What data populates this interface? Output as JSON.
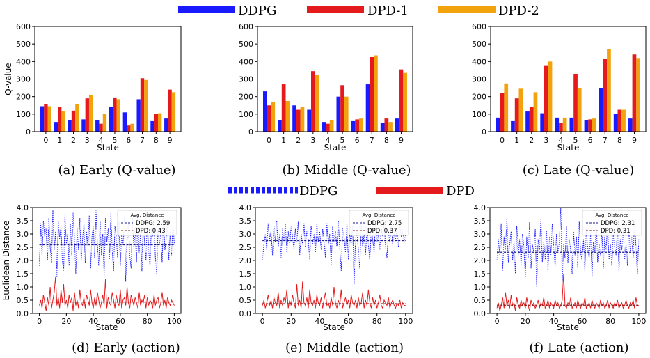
{
  "top_legend": [
    {
      "label": "DDPG",
      "color": "#1a1aff"
    },
    {
      "label": "DPD-1",
      "color": "#e41a1c"
    },
    {
      "label": "DPD-2",
      "color": "#f2a20d"
    }
  ],
  "mid_legend": [
    {
      "label": "DDPG",
      "color": "#1a1aff",
      "style": "dotted"
    },
    {
      "label": "DPD",
      "color": "#e41a1c",
      "style": "solid"
    }
  ],
  "captions": [
    "(a) Early (Q-value)",
    "(b) Middle (Q-value)",
    "(c) Late (Q-value)",
    "(d) Early (action)",
    "(e) Middle (action)",
    "(f) Late (action)"
  ],
  "inset_title": "Avg. Distance",
  "chart_data": [
    {
      "type": "bar",
      "xlabel": "State",
      "ylabel": "Q-value",
      "ylim": [
        0,
        600
      ],
      "yticks": [
        0,
        100,
        200,
        300,
        400,
        500,
        600
      ],
      "categories": [
        "0",
        "1",
        "2",
        "3",
        "4",
        "5",
        "6",
        "7",
        "8",
        "9"
      ],
      "series": [
        {
          "name": "DDPG",
          "values": [
            145,
            55,
            65,
            70,
            65,
            140,
            110,
            185,
            60,
            75
          ]
        },
        {
          "name": "DPD-1",
          "values": [
            155,
            140,
            120,
            190,
            45,
            195,
            35,
            305,
            100,
            240
          ]
        },
        {
          "name": "DPD-2",
          "values": [
            145,
            115,
            155,
            210,
            100,
            185,
            45,
            295,
            105,
            225
          ]
        }
      ]
    },
    {
      "type": "bar",
      "xlabel": "State",
      "ylabel": "",
      "ylim": [
        0,
        600
      ],
      "yticks": [
        0,
        100,
        200,
        300,
        400,
        500,
        600
      ],
      "categories": [
        "0",
        "1",
        "2",
        "3",
        "4",
        "5",
        "6",
        "7",
        "8",
        "9"
      ],
      "series": [
        {
          "name": "DDPG",
          "values": [
            230,
            65,
            150,
            125,
            55,
            200,
            60,
            270,
            50,
            75
          ]
        },
        {
          "name": "DPD-1",
          "values": [
            150,
            270,
            125,
            345,
            45,
            265,
            70,
            425,
            75,
            355
          ]
        },
        {
          "name": "DPD-2",
          "values": [
            170,
            175,
            140,
            325,
            65,
            200,
            75,
            435,
            55,
            335
          ]
        }
      ]
    },
    {
      "type": "bar",
      "xlabel": "State",
      "ylabel": "",
      "ylim": [
        0,
        600
      ],
      "yticks": [
        0,
        100,
        200,
        300,
        400,
        500,
        600
      ],
      "categories": [
        "0",
        "1",
        "2",
        "3",
        "4",
        "5",
        "6",
        "7",
        "8",
        "9"
      ],
      "series": [
        {
          "name": "DDPG",
          "values": [
            80,
            60,
            115,
            105,
            80,
            80,
            65,
            250,
            100,
            75
          ]
        },
        {
          "name": "DPD-1",
          "values": [
            220,
            190,
            140,
            375,
            50,
            330,
            70,
            415,
            125,
            440
          ]
        },
        {
          "name": "DPD-2",
          "values": [
            275,
            245,
            225,
            400,
            80,
            250,
            75,
            470,
            125,
            420
          ]
        }
      ]
    },
    {
      "type": "line",
      "xlabel": "State",
      "ylabel": "Euclidean Distance",
      "xlim": [
        0,
        100
      ],
      "xticks": [
        0,
        20,
        40,
        60,
        80,
        100
      ],
      "ylim": [
        0.0,
        4.0
      ],
      "yticks": [
        "0.0",
        "0.5",
        "1.0",
        "1.5",
        "2.0",
        "2.5",
        "3.0",
        "3.5",
        "4.0"
      ],
      "legend": {
        "title": "Avg. Distance",
        "entries": [
          "DDPG: 2.59",
          "DPD: 0.43"
        ]
      },
      "avg": [
        2.59,
        0.43
      ],
      "series": [
        {
          "name": "DDPG",
          "values": [
            1.8,
            3.4,
            2.2,
            3.5,
            2.9,
            3.2,
            2.0,
            3.6,
            2.5,
            1.9,
            3.9,
            2.4,
            3.1,
            1.4,
            3.5,
            2.8,
            3.3,
            2.0,
            1.6,
            3.7,
            2.6,
            3.0,
            1.8,
            3.4,
            2.2,
            3.8,
            2.9,
            1.5,
            3.2,
            2.4,
            3.6,
            2.0,
            2.8,
            3.4,
            1.9,
            3.1,
            2.5,
            3.7,
            1.7,
            2.9,
            3.3,
            2.1,
            3.9,
            2.6,
            1.8,
            3.5,
            2.2,
            3.0,
            1.4,
            3.6,
            2.7,
            3.2,
            2.0,
            3.8,
            2.4,
            1.6,
            3.3,
            2.9,
            2.1,
            3.5,
            1.8,
            3.0,
            2.6,
            3.7,
            1.2,
            2.8,
            3.4,
            2.2,
            1.7,
            3.6,
            2.5,
            3.1,
            1.9,
            3.8,
            2.3,
            3.0,
            1.6,
            3.4,
            2.7,
            2.0,
            3.5,
            2.4,
            1.8,
            3.2,
            2.9,
            3.6,
            2.1,
            1.5,
            3.3,
            2.6,
            3.0,
            1.9,
            3.7,
            2.4,
            2.8,
            3.4,
            2.0,
            3.1,
            2.2,
            3.5,
            2.6
          ]
        },
        {
          "name": "DPD",
          "values": [
            0.3,
            0.5,
            0.2,
            0.7,
            0.4,
            0.1,
            0.6,
            0.3,
            1.0,
            0.2,
            0.5,
            0.8,
            1.4,
            0.3,
            0.6,
            0.2,
            0.9,
            0.4,
            1.1,
            0.3,
            0.5,
            0.2,
            0.7,
            0.4,
            0.6,
            0.1,
            0.8,
            0.3,
            0.5,
            0.2,
            0.9,
            0.4,
            0.3,
            0.6,
            0.2,
            0.7,
            0.5,
            0.3,
            0.9,
            0.4,
            0.2,
            0.6,
            0.3,
            0.8,
            0.5,
            0.2,
            0.4,
            0.7,
            0.3,
            1.3,
            0.2,
            0.6,
            0.4,
            0.3,
            0.8,
            0.5,
            0.2,
            0.7,
            0.4,
            0.3,
            0.9,
            0.2,
            0.5,
            0.6,
            0.3,
            1.0,
            0.4,
            0.2,
            0.7,
            0.5,
            0.3,
            0.6,
            0.4,
            0.2,
            0.8,
            0.3,
            0.5,
            0.4,
            0.7,
            0.2,
            0.6,
            0.3,
            0.5,
            0.4,
            0.2,
            0.7,
            0.3,
            0.5,
            0.6,
            0.2,
            0.4,
            0.8,
            0.3,
            0.5,
            0.2,
            0.6,
            0.4,
            0.3,
            0.5,
            0.4,
            0.3
          ]
        }
      ]
    },
    {
      "type": "line",
      "xlabel": "State",
      "ylabel": "",
      "xlim": [
        0,
        100
      ],
      "xticks": [
        0,
        20,
        40,
        60,
        80,
        100
      ],
      "ylim": [
        0.0,
        4.0
      ],
      "yticks": [
        "0.0",
        "0.5",
        "1.0",
        "1.5",
        "2.0",
        "2.5",
        "3.0",
        "3.5",
        "4.0"
      ],
      "legend": {
        "title": "Avg. Distance",
        "entries": [
          "DDPG: 2.75",
          "DPD: 0.37"
        ]
      },
      "avg": [
        2.75,
        0.37
      ],
      "series": [
        {
          "name": "DDPG",
          "values": [
            2.0,
            2.6,
            3.0,
            2.4,
            3.4,
            2.8,
            3.1,
            2.2,
            3.3,
            2.7,
            3.5,
            2.5,
            3.0,
            2.1,
            3.2,
            2.8,
            3.4,
            2.3,
            3.1,
            2.6,
            3.3,
            2.9,
            2.4,
            3.2,
            2.7,
            3.5,
            2.2,
            3.0,
            2.6,
            3.4,
            2.5,
            3.1,
            2.8,
            2.0,
            3.3,
            2.6,
            3.0,
            2.3,
            3.4,
            2.7,
            3.1,
            2.4,
            3.2,
            2.8,
            2.1,
            3.4,
            2.6,
            3.0,
            1.8,
            3.3,
            2.7,
            3.1,
            2.5,
            3.5,
            2.4,
            1.6,
            3.2,
            2.9,
            2.3,
            3.4,
            2.0,
            3.0,
            2.6,
            3.3,
            1.1,
            2.8,
            3.1,
            2.4,
            1.7,
            3.4,
            2.5,
            3.0,
            2.2,
            3.3,
            2.6,
            2.0,
            3.2,
            2.8,
            2.3,
            3.5,
            2.7,
            3.0,
            2.4,
            3.2,
            2.9,
            3.4,
            2.5,
            2.1,
            3.1,
            2.7,
            3.3,
            2.6,
            3.0,
            2.8,
            3.2,
            2.5,
            3.4,
            2.9,
            3.1,
            2.7,
            3.0
          ]
        },
        {
          "name": "DPD",
          "values": [
            0.3,
            0.5,
            0.2,
            0.4,
            0.7,
            0.3,
            0.5,
            0.2,
            0.6,
            0.4,
            0.3,
            0.8,
            0.2,
            0.5,
            0.3,
            0.6,
            0.4,
            0.9,
            0.2,
            0.5,
            0.3,
            0.7,
            0.4,
            0.2,
            1.1,
            0.3,
            0.5,
            0.2,
            1.2,
            0.4,
            0.3,
            0.6,
            0.2,
            0.9,
            0.4,
            0.3,
            0.5,
            0.2,
            0.7,
            0.4,
            0.3,
            0.6,
            0.2,
            0.5,
            0.8,
            0.3,
            0.4,
            0.2,
            0.6,
            0.3,
            1.0,
            0.4,
            0.2,
            0.5,
            0.3,
            0.9,
            0.2,
            0.4,
            0.6,
            0.3,
            0.5,
            0.2,
            0.7,
            0.4,
            0.3,
            0.5,
            0.2,
            0.6,
            0.3,
            0.4,
            0.8,
            0.2,
            0.5,
            0.3,
            0.9,
            0.4,
            0.2,
            0.6,
            0.3,
            0.5,
            0.2,
            0.4,
            0.7,
            0.3,
            0.2,
            0.5,
            0.4,
            0.3,
            0.6,
            0.2,
            0.4,
            0.5,
            0.3,
            0.2,
            0.4,
            0.3,
            0.5,
            0.2,
            0.4,
            0.3,
            0.3
          ]
        }
      ]
    },
    {
      "type": "line",
      "xlabel": "State",
      "ylabel": "",
      "xlim": [
        0,
        100
      ],
      "xticks": [
        0,
        20,
        40,
        60,
        80,
        100
      ],
      "ylim": [
        0.0,
        4.0
      ],
      "yticks": [
        "0.0",
        "0.5",
        "1.0",
        "1.5",
        "2.0",
        "2.5",
        "3.0",
        "3.5",
        "4.0"
      ],
      "legend": {
        "title": "Avg. Distance",
        "entries": [
          "DDPG: 2.31",
          "DPD: 0.31"
        ]
      },
      "avg": [
        2.31,
        0.31
      ],
      "series": [
        {
          "name": "DDPG",
          "values": [
            2.0,
            2.8,
            2.2,
            3.4,
            1.6,
            2.9,
            2.4,
            3.6,
            1.9,
            2.6,
            3.1,
            2.0,
            2.7,
            1.5,
            3.3,
            2.2,
            2.8,
            1.8,
            3.0,
            2.5,
            1.4,
            2.9,
            2.1,
            3.5,
            1.7,
            2.6,
            2.3,
            3.2,
            1.0,
            2.8,
            2.4,
            3.6,
            1.9,
            2.7,
            2.0,
            3.1,
            1.6,
            2.9,
            2.2,
            3.4,
            2.5,
            1.8,
            3.0,
            2.3,
            2.7,
            4.0,
            1.2,
            2.6,
            2.1,
            3.3,
            1.9,
            2.8,
            2.4,
            1.5,
            3.1,
            2.2,
            2.9,
            1.7,
            3.5,
            2.3,
            2.0,
            2.8,
            1.6,
            3.2,
            2.5,
            2.1,
            3.0,
            1.4,
            2.7,
            2.3,
            3.6,
            1.9,
            2.6,
            2.2,
            3.1,
            1.7,
            2.9,
            2.4,
            3.4,
            2.0,
            2.6,
            1.8,
            3.0,
            2.5,
            2.2,
            3.3,
            1.6,
            2.8,
            2.4,
            3.1,
            2.0,
            2.6,
            1.8,
            3.2,
            2.3,
            2.9,
            2.1,
            3.5,
            2.5,
            1.5,
            2.8
          ]
        },
        {
          "name": "DPD",
          "values": [
            0.2,
            0.4,
            0.1,
            0.3,
            0.6,
            0.2,
            0.8,
            0.3,
            0.5,
            0.2,
            0.7,
            0.3,
            0.4,
            0.1,
            0.6,
            0.3,
            0.2,
            0.5,
            0.3,
            0.4,
            0.2,
            0.6,
            0.3,
            0.1,
            0.5,
            0.3,
            0.4,
            0.2,
            0.3,
            0.5,
            0.2,
            0.4,
            0.3,
            0.6,
            0.2,
            0.3,
            0.5,
            0.2,
            0.4,
            0.3,
            0.2,
            0.5,
            0.3,
            0.4,
            0.2,
            0.3,
            0.5,
            1.5,
            0.3,
            0.2,
            0.4,
            0.3,
            0.6,
            0.2,
            0.3,
            0.4,
            0.2,
            0.5,
            0.3,
            0.2,
            0.4,
            0.3,
            0.6,
            0.2,
            0.3,
            0.4,
            0.2,
            0.5,
            0.3,
            0.2,
            0.4,
            0.3,
            0.2,
            0.5,
            0.3,
            0.4,
            0.2,
            0.3,
            0.5,
            0.2,
            0.4,
            0.3,
            0.2,
            0.4,
            0.3,
            0.5,
            0.2,
            0.3,
            0.4,
            0.2,
            0.3,
            0.5,
            0.3,
            0.2,
            0.4,
            0.3,
            0.5,
            0.2,
            0.6,
            0.3,
            0.3
          ]
        }
      ]
    }
  ]
}
